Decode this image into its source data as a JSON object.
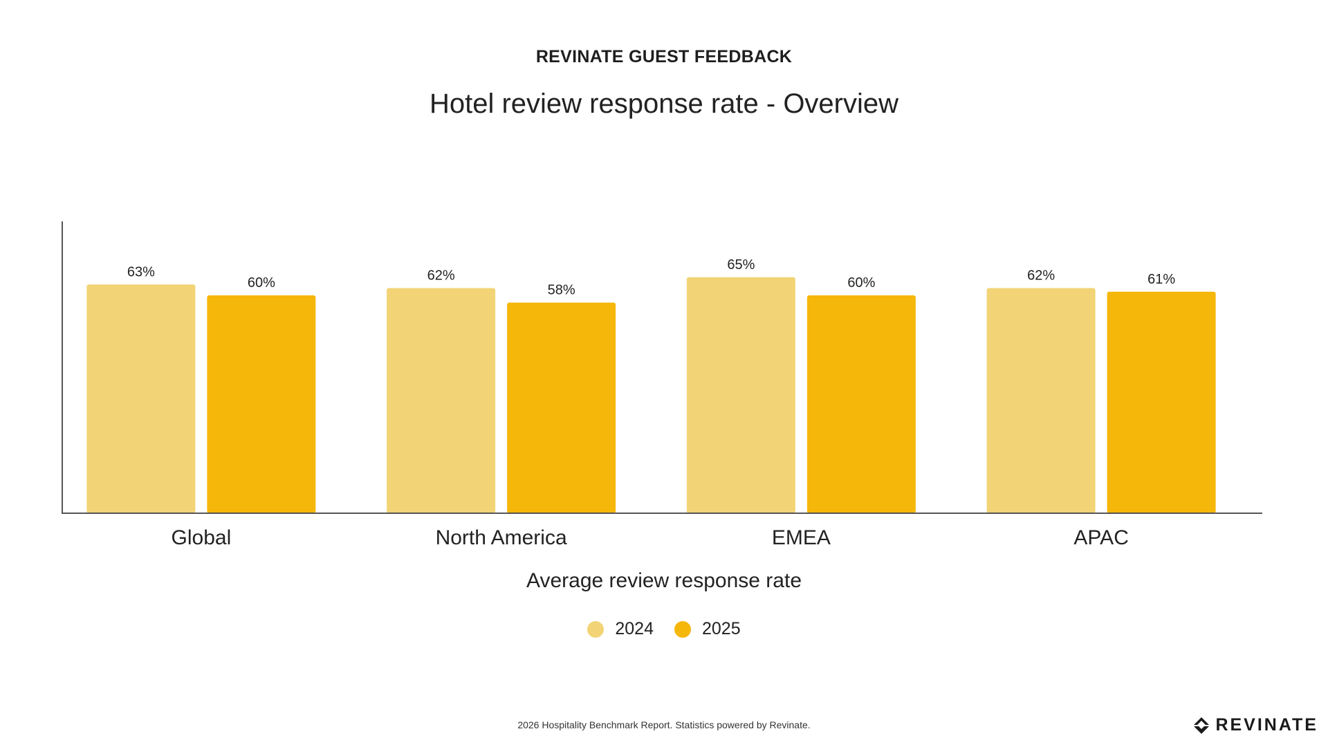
{
  "kicker": "REVINATE GUEST FEEDBACK",
  "title": "Hotel review response rate - Overview",
  "chart_data": {
    "type": "bar",
    "categories": [
      "Global",
      "North America",
      "EMEA",
      "APAC"
    ],
    "series": [
      {
        "name": "2024",
        "values": [
          63,
          62,
          65,
          62
        ],
        "color": "#F2D476"
      },
      {
        "name": "2025",
        "values": [
          60,
          58,
          60,
          61
        ],
        "color": "#F6B70B"
      }
    ],
    "value_suffix": "%",
    "xlabel": "Average review response rate",
    "ylabel": "",
    "ylim": [
      0,
      80
    ],
    "y_ticks_shown": false,
    "grid": false,
    "legend_position": "bottom-center"
  },
  "footer": {
    "text": "2026 Hospitality Benchmark Report. Statistics powered by Revinate."
  },
  "brand": {
    "name": "REVINATE",
    "icon": "revinate-logo-icon"
  }
}
